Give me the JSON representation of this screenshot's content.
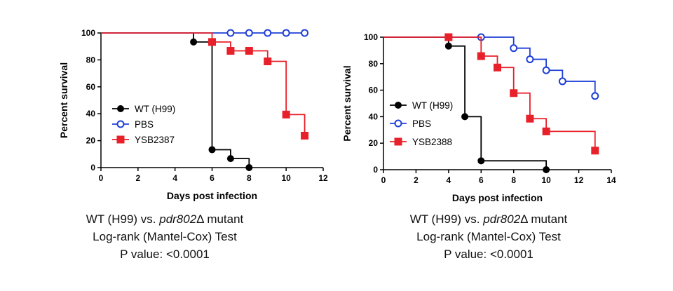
{
  "chart_data": [
    {
      "type": "line",
      "subtype": "kaplan-meier step",
      "xlabel": "Days post infection",
      "ylabel": "Percent survival",
      "xlim": [
        0,
        12
      ],
      "ylim": [
        0,
        100
      ],
      "xticks": [
        "0",
        "2",
        "4",
        "6",
        "8",
        "10",
        "12"
      ],
      "yticks": [
        "0",
        "20",
        "40",
        "60",
        "80",
        "100"
      ],
      "legend_position": "left",
      "series": [
        {
          "name": "WT (H99)",
          "color": "#000000",
          "marker": "filled-circle",
          "steps": [
            [
              0,
              100
            ],
            [
              5,
              93.3
            ],
            [
              6,
              13.3
            ],
            [
              7,
              6.7
            ],
            [
              8,
              0
            ]
          ]
        },
        {
          "name": "PBS",
          "color": "#1f3fd6",
          "marker": "open-circle",
          "steps": [
            [
              0,
              100
            ],
            [
              7,
              100
            ],
            [
              8,
              100
            ],
            [
              9,
              100
            ],
            [
              10,
              100
            ],
            [
              11,
              100
            ]
          ]
        },
        {
          "name": "YSB2387",
          "color": "#e8202a",
          "marker": "filled-square",
          "steps": [
            [
              0,
              100
            ],
            [
              6,
              93.3
            ],
            [
              7,
              86.7
            ],
            [
              8,
              86.7
            ],
            [
              9,
              78.9
            ],
            [
              10,
              39.4
            ],
            [
              11,
              23.7
            ]
          ]
        }
      ],
      "caption": {
        "line1_prefix": "WT (H99) vs. ",
        "line1_italic": "pdr802",
        "line1_suffix": "Δ mutant",
        "line2": "Log-rank (Mantel-Cox) Test",
        "line3": "P value: <0.0001"
      }
    },
    {
      "type": "line",
      "subtype": "kaplan-meier step",
      "xlabel": "Days post infection",
      "ylabel": "Percent survival",
      "xlim": [
        0,
        14
      ],
      "ylim": [
        0,
        100
      ],
      "xticks": [
        "0",
        "2",
        "4",
        "6",
        "8",
        "10",
        "12",
        "14"
      ],
      "yticks": [
        "0",
        "20",
        "40",
        "60",
        "80",
        "100"
      ],
      "legend_position": "left",
      "series": [
        {
          "name": "WT (H99)",
          "color": "#000000",
          "marker": "filled-circle",
          "steps": [
            [
              0,
              100
            ],
            [
              4,
              93.3
            ],
            [
              5,
              40
            ],
            [
              6,
              6.7
            ],
            [
              10,
              0
            ]
          ]
        },
        {
          "name": "PBS",
          "color": "#1f3fd6",
          "marker": "open-circle",
          "steps": [
            [
              0,
              100
            ],
            [
              4,
              100
            ],
            [
              6,
              100
            ],
            [
              8,
              91.7
            ],
            [
              9,
              83.3
            ],
            [
              10,
              75
            ],
            [
              11,
              66.7
            ],
            [
              13,
              55.6
            ]
          ]
        },
        {
          "name": "YSB2388",
          "color": "#e8202a",
          "marker": "filled-square",
          "steps": [
            [
              0,
              100
            ],
            [
              4,
              100
            ],
            [
              6,
              85.7
            ],
            [
              7,
              77.1
            ],
            [
              8,
              57.8
            ],
            [
              9,
              38.5
            ],
            [
              10,
              28.9
            ],
            [
              13,
              14.4
            ]
          ]
        }
      ],
      "caption": {
        "line1_prefix": "WT (H99) vs. ",
        "line1_italic": "pdr802",
        "line1_suffix": "Δ mutant",
        "line2": "Log-rank (Mantel-Cox) Test",
        "line3": "P value: <0.0001"
      }
    }
  ]
}
